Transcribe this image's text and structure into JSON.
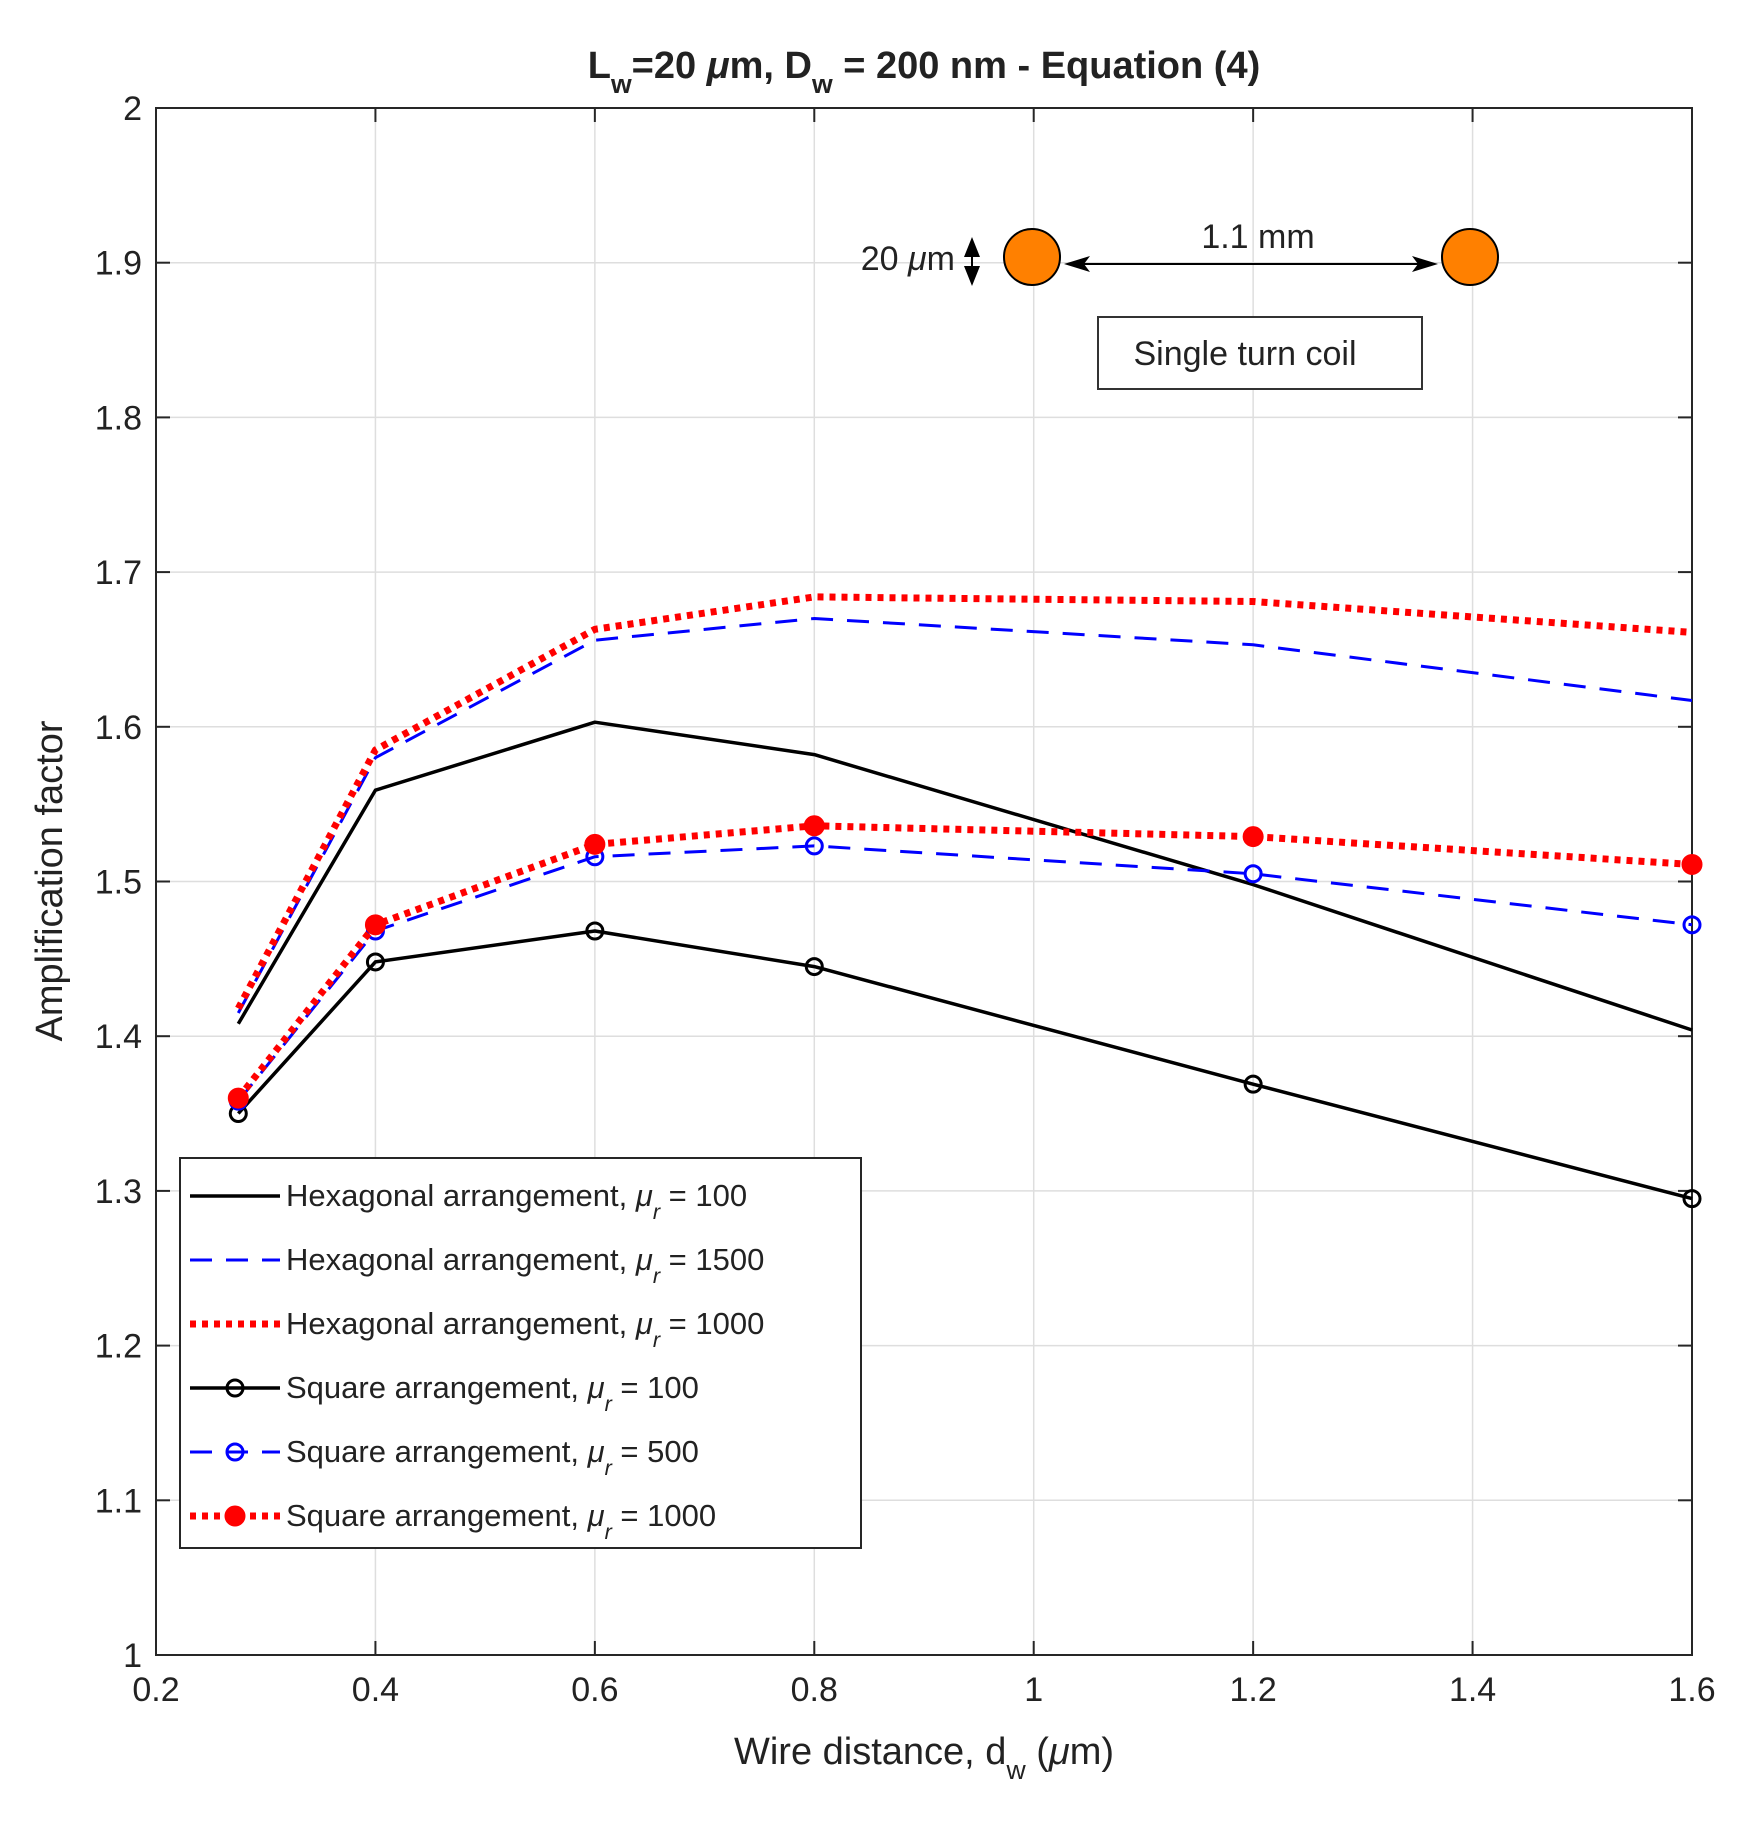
{
  "chart_data": {
    "type": "line",
    "title": {
      "parts": [
        {
          "text": "L",
          "style": "normal"
        },
        {
          "text": "w",
          "style": "sub"
        },
        {
          "text": "=20 ",
          "style": "normal"
        },
        {
          "text": "μ",
          "style": "italic"
        },
        {
          "text": "m, D",
          "style": "normal"
        },
        {
          "text": "w",
          "style": "sub"
        },
        {
          "text": " = 200 nm - Equation (4)",
          "style": "normal"
        }
      ]
    },
    "xlabel": {
      "parts": [
        {
          "text": "Wire distance, d",
          "style": "normal"
        },
        {
          "text": "w",
          "style": "sub"
        },
        {
          "text": " (",
          "style": "normal"
        },
        {
          "text": "μ",
          "style": "italic"
        },
        {
          "text": "m)",
          "style": "normal"
        }
      ]
    },
    "ylabel": "Amplification factor",
    "xlim": [
      0.2,
      1.6
    ],
    "ylim": [
      1,
      2
    ],
    "xticks": [
      0.2,
      0.4,
      0.6,
      0.8,
      1,
      1.2,
      1.4,
      1.6
    ],
    "xtick_labels": [
      "0.2",
      "0.4",
      "0.6",
      "0.8",
      "1",
      "1.2",
      "1.4",
      "1.6"
    ],
    "yticks": [
      1,
      1.1,
      1.2,
      1.3,
      1.4,
      1.5,
      1.6,
      1.7,
      1.8,
      1.9,
      2
    ],
    "ytick_labels": [
      "1",
      "1.1",
      "1.2",
      "1.3",
      "1.4",
      "1.5",
      "1.6",
      "1.7",
      "1.8",
      "1.9",
      "2"
    ],
    "grid": true,
    "legend_position": "bottom-left",
    "series": [
      {
        "name": "Hexagonal arrangement, μr = 100",
        "label_pre": "Hexagonal arrangement, ",
        "label_post": " = 100",
        "color": "#000000",
        "line": "solid",
        "marker": "none",
        "x": [
          0.275,
          0.4,
          0.6,
          0.8,
          1.2,
          1.6
        ],
        "y": [
          1.408,
          1.559,
          1.603,
          1.582,
          1.498,
          1.404
        ]
      },
      {
        "name": "Hexagonal arrangement, μr = 1500",
        "label_pre": "Hexagonal arrangement, ",
        "label_post": " = 1500",
        "color": "#0000ff",
        "line": "dashed",
        "marker": "none",
        "x": [
          0.275,
          0.4,
          0.6,
          0.8,
          1.2,
          1.6
        ],
        "y": [
          1.415,
          1.58,
          1.656,
          1.67,
          1.653,
          1.617
        ]
      },
      {
        "name": "Hexagonal arrangement, μr = 1000",
        "label_pre": "Hexagonal arrangement, ",
        "label_post": " = 1000",
        "color": "#ff0000",
        "line": "dotted",
        "marker": "none",
        "x": [
          0.275,
          0.4,
          0.6,
          0.8,
          1.2,
          1.6
        ],
        "y": [
          1.418,
          1.585,
          1.663,
          1.684,
          1.681,
          1.661
        ]
      },
      {
        "name": "Square arrangement, μr = 100",
        "label_pre": "Square arrangement, ",
        "label_post": " = 100",
        "color": "#000000",
        "line": "solid",
        "marker": "circle-open",
        "x": [
          0.275,
          0.4,
          0.6,
          0.8,
          1.2,
          1.6
        ],
        "y": [
          1.35,
          1.448,
          1.468,
          1.445,
          1.369,
          1.295
        ]
      },
      {
        "name": "Square arrangement, μr = 500",
        "label_pre": "Square arrangement, ",
        "label_post": " = 500",
        "color": "#0000ff",
        "line": "dashed",
        "marker": "circle-open",
        "x": [
          0.275,
          0.4,
          0.6,
          0.8,
          1.2,
          1.6
        ],
        "y": [
          1.358,
          1.468,
          1.516,
          1.523,
          1.505,
          1.472
        ]
      },
      {
        "name": "Square arrangement, μr = 1000",
        "label_pre": "Square arrangement, ",
        "label_post": " = 1000",
        "color": "#ff0000",
        "line": "dotted",
        "marker": "circle-filled",
        "x": [
          0.275,
          0.4,
          0.6,
          0.8,
          1.2,
          1.6
        ],
        "y": [
          1.36,
          1.472,
          1.524,
          1.536,
          1.529,
          1.511
        ]
      }
    ],
    "mu_symbol": "μ",
    "mu_subscript": "r",
    "annotation": {
      "wire_size_num": "20 ",
      "wire_size_mu": "μ",
      "wire_size_unit": "m",
      "spacing_label": "1.1 mm",
      "box_label": "Single turn coil",
      "wire_color": "#ff8000"
    }
  }
}
